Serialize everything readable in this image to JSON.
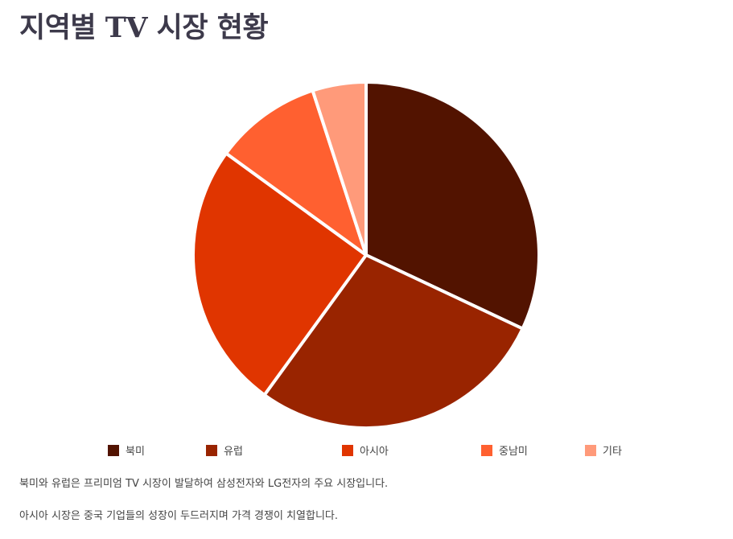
{
  "title": "지역별 TV 시장 현황",
  "chart_data": {
    "type": "pie",
    "title": "지역별 TV 시장 현황",
    "categories": [
      "북미",
      "유럽",
      "아시아",
      "중남미",
      "기타"
    ],
    "values": [
      32,
      28,
      25,
      10,
      5
    ],
    "colors": [
      "#521300",
      "#992400",
      "#e03500",
      "#ff6030",
      "#ff9a7a"
    ],
    "legend_position": "bottom"
  },
  "notes": [
    "북미와 유럽은 프리미엄 TV 시장이 발달하여 삼성전자와 LG전자의 주요 시장입니다.",
    "아시아 시장은 중국 기업들의 성장이 두드러지며 가격 경쟁이 치열합니다."
  ]
}
